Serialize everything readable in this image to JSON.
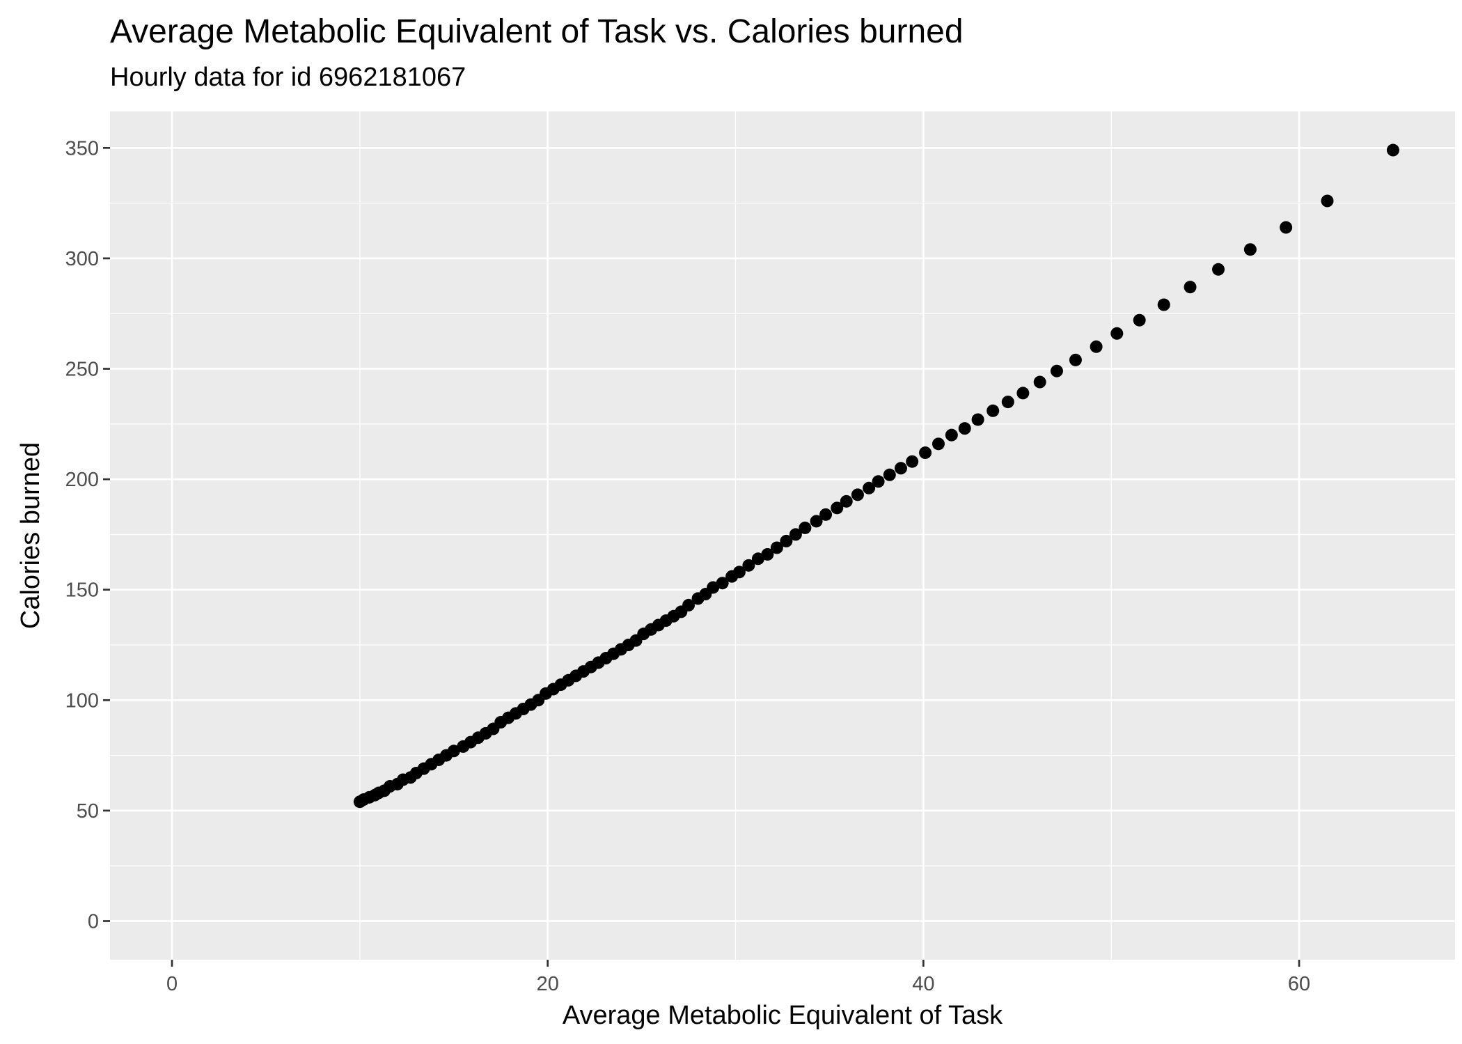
{
  "title": "Average Metabolic Equivalent of Task vs. Calories burned",
  "subtitle": "Hourly data for id 6962181067",
  "chart_data": {
    "type": "scatter",
    "title": "Average Metabolic Equivalent of Task vs. Calories burned",
    "subtitle": "Hourly data for id 6962181067",
    "xlabel": "Average Metabolic Equivalent of Task",
    "ylabel": "Calories burned",
    "xlim": [
      -3.3,
      68.3
    ],
    "ylim": [
      -17.5,
      366.5
    ],
    "x_ticks": [
      0,
      20,
      40,
      60
    ],
    "y_ticks": [
      0,
      50,
      100,
      150,
      200,
      250,
      300,
      350
    ],
    "x_tick_labels": [
      "0",
      "20",
      "40",
      "60"
    ],
    "y_tick_labels": [
      "0",
      "50",
      "100",
      "150",
      "200",
      "250",
      "300",
      "350"
    ],
    "grid": true,
    "legend": "none",
    "colors": {
      "panel": "#ebebeb",
      "grid": "#ffffff",
      "point": "#000000",
      "tick_text": "#4d4d4d"
    },
    "points": [
      {
        "x": 10,
        "y": 54
      },
      {
        "x": 10.2,
        "y": 55
      },
      {
        "x": 10.5,
        "y": 56
      },
      {
        "x": 10.8,
        "y": 57
      },
      {
        "x": 11,
        "y": 58
      },
      {
        "x": 11.3,
        "y": 59
      },
      {
        "x": 11.6,
        "y": 61
      },
      {
        "x": 12,
        "y": 62
      },
      {
        "x": 12.3,
        "y": 64
      },
      {
        "x": 12.7,
        "y": 65
      },
      {
        "x": 13,
        "y": 67
      },
      {
        "x": 13.4,
        "y": 69
      },
      {
        "x": 13.8,
        "y": 71
      },
      {
        "x": 14.2,
        "y": 73
      },
      {
        "x": 14.6,
        "y": 75
      },
      {
        "x": 15,
        "y": 77
      },
      {
        "x": 15.5,
        "y": 79
      },
      {
        "x": 15.9,
        "y": 81
      },
      {
        "x": 16.3,
        "y": 83
      },
      {
        "x": 16.7,
        "y": 85
      },
      {
        "x": 17.1,
        "y": 87
      },
      {
        "x": 17.5,
        "y": 90
      },
      {
        "x": 17.9,
        "y": 92
      },
      {
        "x": 18.3,
        "y": 94
      },
      {
        "x": 18.7,
        "y": 96
      },
      {
        "x": 19.1,
        "y": 98
      },
      {
        "x": 19.5,
        "y": 100
      },
      {
        "x": 19.9,
        "y": 103
      },
      {
        "x": 20.3,
        "y": 105
      },
      {
        "x": 20.7,
        "y": 107
      },
      {
        "x": 21.1,
        "y": 109
      },
      {
        "x": 21.5,
        "y": 111
      },
      {
        "x": 21.9,
        "y": 113
      },
      {
        "x": 22.3,
        "y": 115
      },
      {
        "x": 22.7,
        "y": 117
      },
      {
        "x": 23.1,
        "y": 119
      },
      {
        "x": 23.5,
        "y": 121
      },
      {
        "x": 23.9,
        "y": 123
      },
      {
        "x": 24.3,
        "y": 125
      },
      {
        "x": 24.7,
        "y": 127
      },
      {
        "x": 25.1,
        "y": 130
      },
      {
        "x": 25.5,
        "y": 132
      },
      {
        "x": 25.9,
        "y": 134
      },
      {
        "x": 26.3,
        "y": 136
      },
      {
        "x": 26.7,
        "y": 138
      },
      {
        "x": 27.1,
        "y": 140
      },
      {
        "x": 27.5,
        "y": 143
      },
      {
        "x": 28,
        "y": 146
      },
      {
        "x": 28.4,
        "y": 148
      },
      {
        "x": 28.8,
        "y": 151
      },
      {
        "x": 29.3,
        "y": 153
      },
      {
        "x": 29.8,
        "y": 156
      },
      {
        "x": 30.2,
        "y": 158
      },
      {
        "x": 30.7,
        "y": 161
      },
      {
        "x": 31.2,
        "y": 164
      },
      {
        "x": 31.7,
        "y": 166
      },
      {
        "x": 32.2,
        "y": 169
      },
      {
        "x": 32.7,
        "y": 172
      },
      {
        "x": 33.2,
        "y": 175
      },
      {
        "x": 33.7,
        "y": 178
      },
      {
        "x": 34.3,
        "y": 181
      },
      {
        "x": 34.8,
        "y": 184
      },
      {
        "x": 35.4,
        "y": 187
      },
      {
        "x": 35.9,
        "y": 190
      },
      {
        "x": 36.5,
        "y": 193
      },
      {
        "x": 37.1,
        "y": 196
      },
      {
        "x": 37.6,
        "y": 199
      },
      {
        "x": 38.2,
        "y": 202
      },
      {
        "x": 38.8,
        "y": 205
      },
      {
        "x": 39.4,
        "y": 208
      },
      {
        "x": 40.1,
        "y": 212
      },
      {
        "x": 40.8,
        "y": 216
      },
      {
        "x": 41.5,
        "y": 220
      },
      {
        "x": 42.2,
        "y": 223
      },
      {
        "x": 42.9,
        "y": 227
      },
      {
        "x": 43.7,
        "y": 231
      },
      {
        "x": 44.5,
        "y": 235
      },
      {
        "x": 45.3,
        "y": 239
      },
      {
        "x": 46.2,
        "y": 244
      },
      {
        "x": 47.1,
        "y": 249
      },
      {
        "x": 48.1,
        "y": 254
      },
      {
        "x": 49.2,
        "y": 260
      },
      {
        "x": 50.3,
        "y": 266
      },
      {
        "x": 51.5,
        "y": 272
      },
      {
        "x": 52.8,
        "y": 279
      },
      {
        "x": 54.2,
        "y": 287
      },
      {
        "x": 55.7,
        "y": 295
      },
      {
        "x": 57.4,
        "y": 304
      },
      {
        "x": 59.3,
        "y": 314
      },
      {
        "x": 61.5,
        "y": 326
      },
      {
        "x": 65,
        "y": 349
      }
    ]
  }
}
